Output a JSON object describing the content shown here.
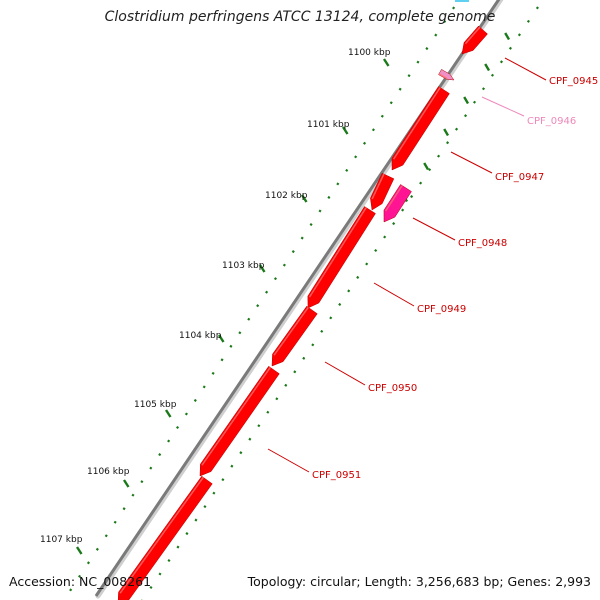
{
  "title": "Clostridium perfringens ATCC 13124, complete genome",
  "footer": {
    "accession": "Accession: NC_008261",
    "summary": "Topology: circular; Length: 3,256,683 bp; Genes: 2,993"
  },
  "colors": {
    "gene": "#ff0000",
    "gene_alt": "#ff1493",
    "gene_pink": "#f090c8",
    "gene_cyan": "#60d0f0",
    "backbone": "#7a7a7a",
    "tick": "#1a7a1a",
    "label_red": "#cc0000",
    "label_pink": "#ee88bb"
  },
  "ticks": [
    {
      "label": "1100 kbp"
    },
    {
      "label": "1101 kbp"
    },
    {
      "label": "1102 kbp"
    },
    {
      "label": "1103 kbp"
    },
    {
      "label": "1104 kbp"
    },
    {
      "label": "1105 kbp"
    },
    {
      "label": "1106 kbp"
    },
    {
      "label": "1107 kbp"
    }
  ],
  "genes": [
    {
      "label": "CPF_0945",
      "color": "red"
    },
    {
      "label": "CPF_0946",
      "color": "pink"
    },
    {
      "label": "CPF_0947",
      "color": "red"
    },
    {
      "label": "CPF_0948",
      "color": "magenta"
    },
    {
      "label": "CPF_0949",
      "color": "red"
    },
    {
      "label": "CPF_0950",
      "color": "red"
    },
    {
      "label": "CPF_0951",
      "color": "red"
    }
  ]
}
